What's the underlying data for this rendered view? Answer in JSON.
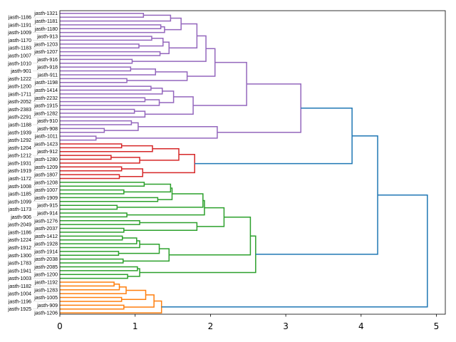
{
  "chart_data": {
    "type": "dendrogram",
    "orientation": "horizontal",
    "title": "",
    "xlabel": "",
    "ylabel": "",
    "xlim": [
      0,
      5.12
    ],
    "xticks": [
      "0",
      "1",
      "2",
      "3",
      "4",
      "5"
    ],
    "grid": false,
    "colors": {
      "above_threshold": "#1f77b4",
      "purple": "#9467bd",
      "red": "#d62728",
      "green": "#2ca02c",
      "orange": "#ff7f0e"
    },
    "leaves": [
      "jasth-1321",
      "jasth-1186",
      "jasth-1181",
      "jasth-1191",
      "jasth-1180",
      "jasth-1009",
      "jasth-913",
      "jasth-1170",
      "jasth-1203",
      "jasth-1183",
      "jasth-1207",
      "jasth-1007",
      "jasth-916",
      "jasth-1010",
      "jasth-918",
      "jasth-901",
      "jasth-911",
      "jasth-1222",
      "jasth-1198",
      "jasth-1200",
      "jasth-1414",
      "jasth-1711",
      "jasth-2232",
      "jasth-2052",
      "jasth-1915",
      "jasth-2383",
      "jasth-1282",
      "jasth-2291",
      "jasth-910",
      "jasth-1188",
      "jasth-908",
      "jasth-1939",
      "jasth-1011",
      "jasth-1292",
      "jasth-1423",
      "jasth-1204",
      "jasth-912",
      "jasth-1212",
      "jasth-1280",
      "jasth-1931",
      "jasth-1209",
      "jasth-1919",
      "jasth-1807",
      "jasth-1172",
      "jasth-1208",
      "jasth-1008",
      "jasth-1007",
      "jasth-1185",
      "jasth-1909",
      "jasth-1099",
      "jasth-915",
      "jasth-1173",
      "jasth-914",
      "jasth-906",
      "jasth-1276",
      "jasth-2049",
      "jasth-2037",
      "jasth-1186",
      "jasth-1412",
      "jasth-1224",
      "jasth-1928",
      "jasth-1912",
      "jasth-1914",
      "jasth-1300",
      "jasth-2038",
      "jasth-1783",
      "jasth-2085",
      "jasth-1941",
      "jasth-1200",
      "jasth-1003",
      "jasth-1192",
      "jasth-1182",
      "jasth-1283",
      "jasth-1004",
      "jasth-1005",
      "jasth-1196",
      "jasth-909",
      "jasth-1925",
      "jasth-1206"
    ],
    "tree": {
      "h": 4.88,
      "color": "#1f77b4",
      "c": [
        {
          "h": 4.22,
          "c": [
            {
              "h": 3.88,
              "c": [
                {
                  "h": 3.2,
                  "color": "#9467bd",
                  "c": [
                    {
                      "h": 2.48,
                      "c": [
                        {
                          "h": 2.06,
                          "c": [
                            {
                              "h": 1.94,
                              "c": [
                                {
                                  "h": 1.82,
                                  "c": [
                                    {
                                      "h": 1.61,
                                      "c": [
                                        {
                                          "h": 1.47,
                                          "c": [
                                            {
                                              "h": 1.11,
                                              "c": [
                                                0,
                                                1
                                              ]
                                            },
                                            2
                                          ]
                                        },
                                        {
                                          "h": 1.39,
                                          "c": [
                                            {
                                              "h": 1.34,
                                              "c": [
                                                3,
                                                4
                                              ]
                                            },
                                            5
                                          ]
                                        }
                                      ]
                                    },
                                    {
                                      "h": 1.45,
                                      "c": [
                                        {
                                          "h": 1.37,
                                          "c": [
                                            {
                                              "h": 1.22,
                                              "c": [
                                                6,
                                                7
                                              ]
                                            },
                                            {
                                              "h": 1.05,
                                              "c": [
                                                8,
                                                9
                                              ]
                                            }
                                          ]
                                        },
                                        {
                                          "h": 1.33,
                                          "c": [
                                            10,
                                            11
                                          ]
                                        }
                                      ]
                                    }
                                  ]
                                },
                                {
                                  "h": 0.96,
                                  "c": [
                                    12,
                                    13
                                  ]
                                }
                              ]
                            },
                            {
                              "h": 1.69,
                              "c": [
                                {
                                  "h": 1.27,
                                  "c": [
                                    {
                                      "h": 0.94,
                                      "c": [
                                        14,
                                        15
                                      ]
                                    },
                                    16
                                  ]
                                },
                                {
                                  "h": 0.89,
                                  "c": [
                                    17,
                                    18
                                  ]
                                }
                              ]
                            }
                          ]
                        },
                        {
                          "h": 1.77,
                          "c": [
                            {
                              "h": 1.51,
                              "c": [
                                {
                                  "h": 1.36,
                                  "c": [
                                    {
                                      "h": 1.21,
                                      "c": [
                                        19,
                                        20
                                      ]
                                    },
                                    21
                                  ]
                                },
                                {
                                  "h": 1.32,
                                  "c": [
                                    {
                                      "h": 1.13,
                                      "c": [
                                        22,
                                        23
                                      ]
                                    },
                                    24
                                  ]
                                }
                              ]
                            },
                            {
                              "h": 1.13,
                              "c": [
                                {
                                  "h": 0.99,
                                  "c": [
                                    25,
                                    26
                                  ]
                                },
                                27
                              ]
                            }
                          ]
                        }
                      ]
                    },
                    {
                      "h": 2.09,
                      "c": [
                        {
                          "h": 1.04,
                          "c": [
                            {
                              "h": 0.95,
                              "c": [
                                28,
                                29
                              ]
                            },
                            {
                              "h": 0.59,
                              "c": [
                                30,
                                31
                              ]
                            }
                          ]
                        },
                        {
                          "h": 0.48,
                          "c": [
                            32,
                            33
                          ]
                        }
                      ]
                    }
                  ]
                },
                {
                  "h": 1.79,
                  "color": "#d62728",
                  "c": [
                    {
                      "h": 1.58,
                      "c": [
                        {
                          "h": 1.23,
                          "c": [
                            {
                              "h": 0.82,
                              "c": [
                                34,
                                35
                              ]
                            },
                            36
                          ]
                        },
                        {
                          "h": 1.06,
                          "c": [
                            {
                              "h": 0.68,
                              "c": [
                                37,
                                38
                              ]
                            },
                            39
                          ]
                        }
                      ]
                    },
                    {
                      "h": 1.1,
                      "c": [
                        {
                          "h": 0.82,
                          "c": [
                            40,
                            41
                          ]
                        },
                        {
                          "h": 0.79,
                          "c": [
                            42,
                            43
                          ]
                        }
                      ]
                    }
                  ]
                }
              ]
            },
            {
              "h": 2.6,
              "color": "#2ca02c",
              "c": [
                {
                  "h": 2.53,
                  "c": [
                    {
                      "h": 2.18,
                      "c": [
                        {
                          "h": 1.92,
                          "c": [
                            {
                              "h": 1.9,
                              "c": [
                                {
                                  "h": 1.49,
                                  "c": [
                                    {
                                      "h": 1.47,
                                      "c": [
                                        {
                                          "h": 1.12,
                                          "c": [
                                            44,
                                            45
                                          ]
                                        },
                                        {
                                          "h": 0.85,
                                          "c": [
                                            46,
                                            47
                                          ]
                                        }
                                      ]
                                    },
                                    {
                                      "h": 1.3,
                                      "c": [
                                        48,
                                        49
                                      ]
                                    }
                                  ]
                                },
                                {
                                  "h": 0.76,
                                  "c": [
                                    50,
                                    51
                                  ]
                                }
                              ]
                            },
                            {
                              "h": 0.89,
                              "c": [
                                52,
                                53
                              ]
                            }
                          ]
                        },
                        {
                          "h": 1.82,
                          "c": [
                            {
                              "h": 1.06,
                              "c": [
                                54,
                                55
                              ]
                            },
                            {
                              "h": 0.85,
                              "c": [
                                56,
                                57
                              ]
                            }
                          ]
                        }
                      ]
                    },
                    {
                      "h": 1.45,
                      "c": [
                        {
                          "h": 1.32,
                          "c": [
                            {
                              "h": 1.06,
                              "c": [
                                {
                                  "h": 1.02,
                                  "c": [
                                    {
                                      "h": 0.83,
                                      "c": [
                                        58,
                                        59
                                      ]
                                    },
                                    60
                                  ]
                                },
                                61
                              ]
                            },
                            {
                              "h": 0.78,
                              "c": [
                                62,
                                63
                              ]
                            }
                          ]
                        },
                        {
                          "h": 0.84,
                          "c": [
                            64,
                            65
                          ]
                        }
                      ]
                    }
                  ]
                },
                {
                  "h": 1.06,
                  "c": [
                    {
                      "h": 1.03,
                      "c": [
                        66,
                        67
                      ]
                    },
                    {
                      "h": 0.9,
                      "c": [
                        68,
                        69
                      ]
                    }
                  ]
                }
              ]
            }
          ]
        },
        {
          "h": 1.35,
          "color": "#ff7f0e",
          "c": [
            {
              "h": 1.25,
              "c": [
                {
                  "h": 1.14,
                  "c": [
                    {
                      "h": 0.88,
                      "c": [
                        {
                          "h": 0.79,
                          "c": [
                            {
                              "h": 0.72,
                              "c": [
                                70,
                                71
                              ]
                            },
                            72
                          ]
                        },
                        73
                      ]
                    },
                    {
                      "h": 0.82,
                      "c": [
                        74,
                        75
                      ]
                    }
                  ]
                },
                {
                  "h": 0.85,
                  "c": [
                    76,
                    77
                  ]
                }
              ]
            },
            78
          ]
        }
      ]
    }
  }
}
